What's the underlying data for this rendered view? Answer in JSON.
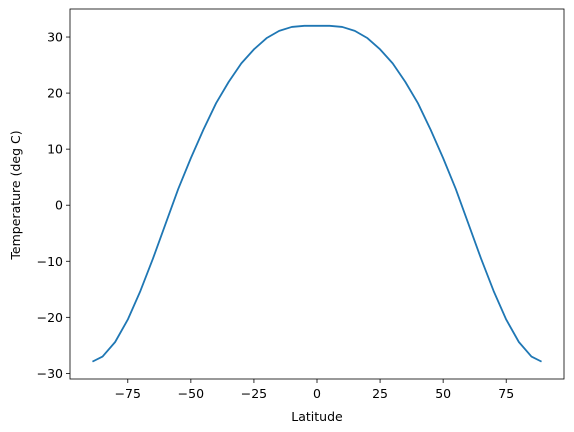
{
  "chart_data": {
    "type": "line",
    "title": "",
    "xlabel": "Latitude",
    "ylabel": "Temperature (deg C)",
    "xlim": [
      -97.9,
      97.9
    ],
    "ylim": [
      -31.0,
      35.0
    ],
    "xticks": [
      -75,
      -50,
      -25,
      0,
      25,
      50,
      75
    ],
    "yticks": [
      -30,
      -20,
      -10,
      0,
      10,
      20,
      30
    ],
    "xtick_labels": [
      "−75",
      "−50",
      "−25",
      "0",
      "25",
      "50",
      "75"
    ],
    "ytick_labels": [
      "−30",
      "−20",
      "−10",
      "0",
      "10",
      "20",
      "30"
    ],
    "grid": false,
    "series": [
      {
        "color": "#1f77b4",
        "x": [
          -89,
          -85,
          -80,
          -75,
          -70,
          -65,
          -60,
          -55,
          -50,
          -45,
          -40,
          -35,
          -30,
          -25,
          -20,
          -15,
          -10,
          -5,
          0,
          5,
          10,
          15,
          20,
          25,
          30,
          35,
          40,
          45,
          50,
          55,
          60,
          65,
          70,
          75,
          80,
          85,
          89
        ],
        "y": [
          -27.9,
          -27.0,
          -24.4,
          -20.4,
          -15.3,
          -9.5,
          -3.3,
          2.9,
          8.4,
          13.5,
          18.2,
          22.0,
          25.3,
          27.8,
          29.8,
          31.1,
          31.8,
          32.0,
          32.0,
          32.0,
          31.8,
          31.1,
          29.8,
          27.8,
          25.3,
          22.0,
          18.2,
          13.5,
          8.4,
          2.9,
          -3.3,
          -9.5,
          -15.3,
          -20.4,
          -24.4,
          -27.0,
          -27.9
        ]
      }
    ]
  }
}
